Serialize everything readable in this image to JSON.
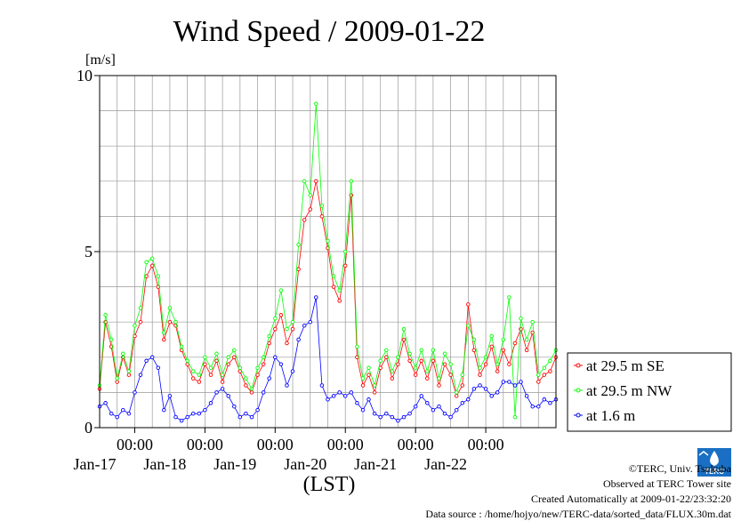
{
  "chart_data": {
    "type": "line",
    "title": "Wind Speed / 2009-01-22",
    "y_unit": "[m/s]",
    "xlabel": "(LST)",
    "ylim": [
      0,
      10
    ],
    "yticks": [
      {
        "value": 0,
        "label": "0"
      },
      {
        "value": 5,
        "label": "5"
      },
      {
        "value": 10,
        "label": "10"
      }
    ],
    "x_start": "2009-01-16 12:00",
    "x_end": "2009-01-22 24:00",
    "x_days": [
      {
        "time_label": "00:00",
        "date_label": "Jan-17"
      },
      {
        "time_label": "00:00",
        "date_label": "Jan-18"
      },
      {
        "time_label": "00:00",
        "date_label": "Jan-19"
      },
      {
        "time_label": "00:00",
        "date_label": "Jan-20"
      },
      {
        "time_label": "00:00",
        "date_label": "Jan-21"
      },
      {
        "time_label": "00:00",
        "date_label": "Jan-22"
      }
    ],
    "grid": true,
    "legend_position": "right",
    "series": [
      {
        "name": "at 29.5 m SE",
        "color": "#ff0000",
        "points": [
          [
            "2009-01-16 12:00",
            1.1
          ],
          [
            "2009-01-16 14:00",
            3.0
          ],
          [
            "2009-01-16 16:00",
            2.3
          ],
          [
            "2009-01-16 18:00",
            1.3
          ],
          [
            "2009-01-16 20:00",
            2.0
          ],
          [
            "2009-01-16 22:00",
            1.5
          ],
          [
            "2009-01-17 00:00",
            2.6
          ],
          [
            "2009-01-17 02:00",
            3.0
          ],
          [
            "2009-01-17 04:00",
            4.3
          ],
          [
            "2009-01-17 06:00",
            4.6
          ],
          [
            "2009-01-17 08:00",
            4.0
          ],
          [
            "2009-01-17 10:00",
            2.5
          ],
          [
            "2009-01-17 12:00",
            3.0
          ],
          [
            "2009-01-17 14:00",
            2.9
          ],
          [
            "2009-01-17 16:00",
            2.2
          ],
          [
            "2009-01-17 18:00",
            1.8
          ],
          [
            "2009-01-17 20:00",
            1.4
          ],
          [
            "2009-01-17 22:00",
            1.3
          ],
          [
            "2009-01-18 00:00",
            1.8
          ],
          [
            "2009-01-18 02:00",
            1.5
          ],
          [
            "2009-01-18 04:00",
            1.9
          ],
          [
            "2009-01-18 06:00",
            1.3
          ],
          [
            "2009-01-18 08:00",
            1.8
          ],
          [
            "2009-01-18 10:00",
            2.0
          ],
          [
            "2009-01-18 12:00",
            1.6
          ],
          [
            "2009-01-18 14:00",
            1.2
          ],
          [
            "2009-01-18 16:00",
            1.0
          ],
          [
            "2009-01-18 18:00",
            1.5
          ],
          [
            "2009-01-18 20:00",
            1.8
          ],
          [
            "2009-01-18 22:00",
            2.4
          ],
          [
            "2009-01-19 00:00",
            2.8
          ],
          [
            "2009-01-19 02:00",
            3.2
          ],
          [
            "2009-01-19 04:00",
            2.4
          ],
          [
            "2009-01-19 06:00",
            2.8
          ],
          [
            "2009-01-19 08:00",
            4.5
          ],
          [
            "2009-01-19 10:00",
            5.9
          ],
          [
            "2009-01-19 12:00",
            6.2
          ],
          [
            "2009-01-19 14:00",
            7.0
          ],
          [
            "2009-01-19 16:00",
            6.0
          ],
          [
            "2009-01-19 18:00",
            5.1
          ],
          [
            "2009-01-19 20:00",
            4.0
          ],
          [
            "2009-01-19 22:00",
            3.6
          ],
          [
            "2009-01-20 00:00",
            4.6
          ],
          [
            "2009-01-20 02:00",
            6.6
          ],
          [
            "2009-01-20 04:00",
            2.0
          ],
          [
            "2009-01-20 06:00",
            1.2
          ],
          [
            "2009-01-20 08:00",
            1.5
          ],
          [
            "2009-01-20 10:00",
            1.0
          ],
          [
            "2009-01-20 12:00",
            1.7
          ],
          [
            "2009-01-20 14:00",
            2.0
          ],
          [
            "2009-01-20 16:00",
            1.4
          ],
          [
            "2009-01-20 18:00",
            1.8
          ],
          [
            "2009-01-20 20:00",
            2.5
          ],
          [
            "2009-01-20 22:00",
            1.9
          ],
          [
            "2009-01-21 00:00",
            1.5
          ],
          [
            "2009-01-21 02:00",
            1.9
          ],
          [
            "2009-01-21 04:00",
            1.4
          ],
          [
            "2009-01-21 06:00",
            1.9
          ],
          [
            "2009-01-21 08:00",
            1.2
          ],
          [
            "2009-01-21 10:00",
            1.8
          ],
          [
            "2009-01-21 12:00",
            1.5
          ],
          [
            "2009-01-21 14:00",
            0.9
          ],
          [
            "2009-01-21 16:00",
            1.2
          ],
          [
            "2009-01-21 18:00",
            3.5
          ],
          [
            "2009-01-21 20:00",
            2.2
          ],
          [
            "2009-01-21 22:00",
            1.5
          ],
          [
            "2009-01-22 00:00",
            1.8
          ],
          [
            "2009-01-22 02:00",
            2.3
          ],
          [
            "2009-01-22 04:00",
            1.6
          ],
          [
            "2009-01-22 06:00",
            2.2
          ],
          [
            "2009-01-22 08:00",
            1.8
          ],
          [
            "2009-01-22 10:00",
            2.4
          ],
          [
            "2009-01-22 12:00",
            2.8
          ],
          [
            "2009-01-22 14:00",
            2.2
          ],
          [
            "2009-01-22 16:00",
            2.7
          ],
          [
            "2009-01-22 18:00",
            1.3
          ],
          [
            "2009-01-22 20:00",
            1.5
          ],
          [
            "2009-01-22 22:00",
            1.6
          ],
          [
            "2009-01-22 24:00",
            2.0
          ]
        ]
      },
      {
        "name": "at 29.5 m NW",
        "color": "#00ff00",
        "points": [
          [
            "2009-01-16 12:00",
            1.2
          ],
          [
            "2009-01-16 14:00",
            3.2
          ],
          [
            "2009-01-16 16:00",
            2.5
          ],
          [
            "2009-01-16 18:00",
            1.4
          ],
          [
            "2009-01-16 20:00",
            2.1
          ],
          [
            "2009-01-16 22:00",
            1.6
          ],
          [
            "2009-01-17 00:00",
            2.9
          ],
          [
            "2009-01-17 02:00",
            3.4
          ],
          [
            "2009-01-17 04:00",
            4.7
          ],
          [
            "2009-01-17 06:00",
            4.8
          ],
          [
            "2009-01-17 08:00",
            4.3
          ],
          [
            "2009-01-17 10:00",
            2.7
          ],
          [
            "2009-01-17 12:00",
            3.4
          ],
          [
            "2009-01-17 14:00",
            3.0
          ],
          [
            "2009-01-17 16:00",
            2.3
          ],
          [
            "2009-01-17 18:00",
            1.9
          ],
          [
            "2009-01-17 20:00",
            1.6
          ],
          [
            "2009-01-17 22:00",
            1.5
          ],
          [
            "2009-01-18 00:00",
            2.0
          ],
          [
            "2009-01-18 02:00",
            1.7
          ],
          [
            "2009-01-18 04:00",
            2.1
          ],
          [
            "2009-01-18 06:00",
            1.5
          ],
          [
            "2009-01-18 08:00",
            2.0
          ],
          [
            "2009-01-18 10:00",
            2.2
          ],
          [
            "2009-01-18 12:00",
            1.7
          ],
          [
            "2009-01-18 14:00",
            1.4
          ],
          [
            "2009-01-18 16:00",
            1.1
          ],
          [
            "2009-01-18 18:00",
            1.7
          ],
          [
            "2009-01-18 20:00",
            2.0
          ],
          [
            "2009-01-18 22:00",
            2.6
          ],
          [
            "2009-01-19 00:00",
            3.1
          ],
          [
            "2009-01-19 02:00",
            3.9
          ],
          [
            "2009-01-19 04:00",
            2.8
          ],
          [
            "2009-01-19 06:00",
            3.0
          ],
          [
            "2009-01-19 08:00",
            5.2
          ],
          [
            "2009-01-19 10:00",
            7.0
          ],
          [
            "2009-01-19 12:00",
            6.6
          ],
          [
            "2009-01-19 14:00",
            9.2
          ],
          [
            "2009-01-19 16:00",
            6.3
          ],
          [
            "2009-01-19 18:00",
            5.3
          ],
          [
            "2009-01-19 20:00",
            4.3
          ],
          [
            "2009-01-19 22:00",
            3.9
          ],
          [
            "2009-01-20 00:00",
            5.0
          ],
          [
            "2009-01-20 02:00",
            7.0
          ],
          [
            "2009-01-20 04:00",
            2.3
          ],
          [
            "2009-01-20 06:00",
            1.4
          ],
          [
            "2009-01-20 08:00",
            1.7
          ],
          [
            "2009-01-20 10:00",
            1.2
          ],
          [
            "2009-01-20 12:00",
            1.9
          ],
          [
            "2009-01-20 14:00",
            2.2
          ],
          [
            "2009-01-20 16:00",
            1.6
          ],
          [
            "2009-01-20 18:00",
            2.0
          ],
          [
            "2009-01-20 20:00",
            2.8
          ],
          [
            "2009-01-20 22:00",
            2.1
          ],
          [
            "2009-01-21 00:00",
            1.7
          ],
          [
            "2009-01-21 02:00",
            2.2
          ],
          [
            "2009-01-21 04:00",
            1.6
          ],
          [
            "2009-01-21 06:00",
            2.2
          ],
          [
            "2009-01-21 08:00",
            1.4
          ],
          [
            "2009-01-21 10:00",
            2.1
          ],
          [
            "2009-01-21 12:00",
            1.8
          ],
          [
            "2009-01-21 14:00",
            1.0
          ],
          [
            "2009-01-21 16:00",
            1.5
          ],
          [
            "2009-01-21 18:00",
            2.9
          ],
          [
            "2009-01-21 20:00",
            2.5
          ],
          [
            "2009-01-21 22:00",
            1.7
          ],
          [
            "2009-01-22 00:00",
            2.0
          ],
          [
            "2009-01-22 02:00",
            2.6
          ],
          [
            "2009-01-22 04:00",
            1.8
          ],
          [
            "2009-01-22 06:00",
            2.5
          ],
          [
            "2009-01-22 08:00",
            3.7
          ],
          [
            "2009-01-22 10:00",
            0.3
          ],
          [
            "2009-01-22 12:00",
            3.1
          ],
          [
            "2009-01-22 14:00",
            2.5
          ],
          [
            "2009-01-22 16:00",
            3.0
          ],
          [
            "2009-01-22 18:00",
            1.5
          ],
          [
            "2009-01-22 20:00",
            1.7
          ],
          [
            "2009-01-22 22:00",
            1.9
          ],
          [
            "2009-01-22 24:00",
            2.2
          ]
        ]
      },
      {
        "name": "at 1.6 m",
        "color": "#0000ff",
        "points": [
          [
            "2009-01-16 12:00",
            0.6
          ],
          [
            "2009-01-16 14:00",
            0.7
          ],
          [
            "2009-01-16 16:00",
            0.4
          ],
          [
            "2009-01-16 18:00",
            0.3
          ],
          [
            "2009-01-16 20:00",
            0.5
          ],
          [
            "2009-01-16 22:00",
            0.4
          ],
          [
            "2009-01-17 00:00",
            1.0
          ],
          [
            "2009-01-17 02:00",
            1.5
          ],
          [
            "2009-01-17 04:00",
            1.9
          ],
          [
            "2009-01-17 06:00",
            2.0
          ],
          [
            "2009-01-17 08:00",
            1.7
          ],
          [
            "2009-01-17 10:00",
            0.5
          ],
          [
            "2009-01-17 12:00",
            0.9
          ],
          [
            "2009-01-17 14:00",
            0.3
          ],
          [
            "2009-01-17 16:00",
            0.2
          ],
          [
            "2009-01-17 18:00",
            0.3
          ],
          [
            "2009-01-17 20:00",
            0.4
          ],
          [
            "2009-01-17 22:00",
            0.4
          ],
          [
            "2009-01-18 00:00",
            0.5
          ],
          [
            "2009-01-18 02:00",
            0.7
          ],
          [
            "2009-01-18 04:00",
            1.0
          ],
          [
            "2009-01-18 06:00",
            1.1
          ],
          [
            "2009-01-18 08:00",
            0.9
          ],
          [
            "2009-01-18 10:00",
            0.6
          ],
          [
            "2009-01-18 12:00",
            0.3
          ],
          [
            "2009-01-18 14:00",
            0.4
          ],
          [
            "2009-01-18 16:00",
            0.3
          ],
          [
            "2009-01-18 18:00",
            0.5
          ],
          [
            "2009-01-18 20:00",
            1.0
          ],
          [
            "2009-01-18 22:00",
            1.4
          ],
          [
            "2009-01-19 00:00",
            2.0
          ],
          [
            "2009-01-19 02:00",
            1.8
          ],
          [
            "2009-01-19 04:00",
            1.2
          ],
          [
            "2009-01-19 06:00",
            1.6
          ],
          [
            "2009-01-19 08:00",
            2.5
          ],
          [
            "2009-01-19 10:00",
            2.9
          ],
          [
            "2009-01-19 12:00",
            3.0
          ],
          [
            "2009-01-19 14:00",
            3.7
          ],
          [
            "2009-01-19 16:00",
            1.2
          ],
          [
            "2009-01-19 18:00",
            0.8
          ],
          [
            "2009-01-19 20:00",
            0.9
          ],
          [
            "2009-01-19 22:00",
            1.0
          ],
          [
            "2009-01-20 00:00",
            0.9
          ],
          [
            "2009-01-20 02:00",
            1.0
          ],
          [
            "2009-01-20 04:00",
            0.7
          ],
          [
            "2009-01-20 06:00",
            0.5
          ],
          [
            "2009-01-20 08:00",
            0.8
          ],
          [
            "2009-01-20 10:00",
            0.4
          ],
          [
            "2009-01-20 12:00",
            0.3
          ],
          [
            "2009-01-20 14:00",
            0.4
          ],
          [
            "2009-01-20 16:00",
            0.3
          ],
          [
            "2009-01-20 18:00",
            0.2
          ],
          [
            "2009-01-20 20:00",
            0.3
          ],
          [
            "2009-01-20 22:00",
            0.4
          ],
          [
            "2009-01-21 00:00",
            0.6
          ],
          [
            "2009-01-21 02:00",
            0.9
          ],
          [
            "2009-01-21 04:00",
            0.7
          ],
          [
            "2009-01-21 06:00",
            0.5
          ],
          [
            "2009-01-21 08:00",
            0.6
          ],
          [
            "2009-01-21 10:00",
            0.4
          ],
          [
            "2009-01-21 12:00",
            0.3
          ],
          [
            "2009-01-21 14:00",
            0.5
          ],
          [
            "2009-01-21 16:00",
            0.7
          ],
          [
            "2009-01-21 18:00",
            0.8
          ],
          [
            "2009-01-21 20:00",
            1.1
          ],
          [
            "2009-01-21 22:00",
            1.2
          ],
          [
            "2009-01-22 00:00",
            1.1
          ],
          [
            "2009-01-22 02:00",
            0.9
          ],
          [
            "2009-01-22 04:00",
            1.0
          ],
          [
            "2009-01-22 06:00",
            1.3
          ],
          [
            "2009-01-22 08:00",
            1.3
          ],
          [
            "2009-01-22 10:00",
            1.2
          ],
          [
            "2009-01-22 12:00",
            1.3
          ],
          [
            "2009-01-22 14:00",
            0.9
          ],
          [
            "2009-01-22 16:00",
            0.6
          ],
          [
            "2009-01-22 18:00",
            0.6
          ],
          [
            "2009-01-22 20:00",
            0.8
          ],
          [
            "2009-01-22 22:00",
            0.7
          ],
          [
            "2009-01-22 24:00",
            0.8
          ]
        ]
      }
    ]
  },
  "footer": {
    "copyright": "©TERC, Univ. Tsukuba",
    "observed": "Observed at TERC Tower site",
    "created": "Created Automatically at 2009-01-22/23:32:20",
    "source": "Data source : /home/hojyo/new/TERC-data/sorted_data/FLUX.30m.dat",
    "logo_text": "TERC"
  }
}
